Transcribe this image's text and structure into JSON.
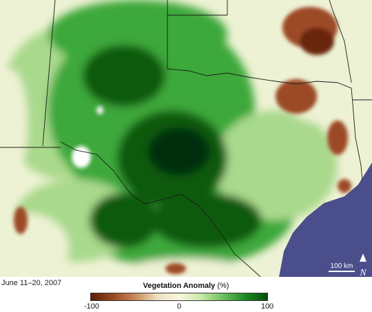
{
  "date_label": "June 11–20, 2007",
  "legend": {
    "title": "Vegetation Anomaly",
    "unit": "(%)",
    "min_label": "-100",
    "mid_label": "0",
    "max_label": "100",
    "colors": [
      "#5a1d08",
      "#9a4a22",
      "#c98a58",
      "#efe0bf",
      "#f7f7df",
      "#c9e7a6",
      "#6cc05a",
      "#1c8a24",
      "#0a4d0c"
    ]
  },
  "scale_bar": {
    "label": "100 km"
  },
  "north_arrow": {
    "label": "N"
  },
  "colors": {
    "gulf": "#4a4f8c",
    "neutral_land": "#eef2d4",
    "light_green": "#a9d98c",
    "green": "#3ea83a",
    "dark_green": "#0c5a10",
    "darkest_green": "#062e07",
    "brown": "#9c4a25",
    "dark_brown": "#6a2610",
    "border": "#1a1a1a"
  }
}
